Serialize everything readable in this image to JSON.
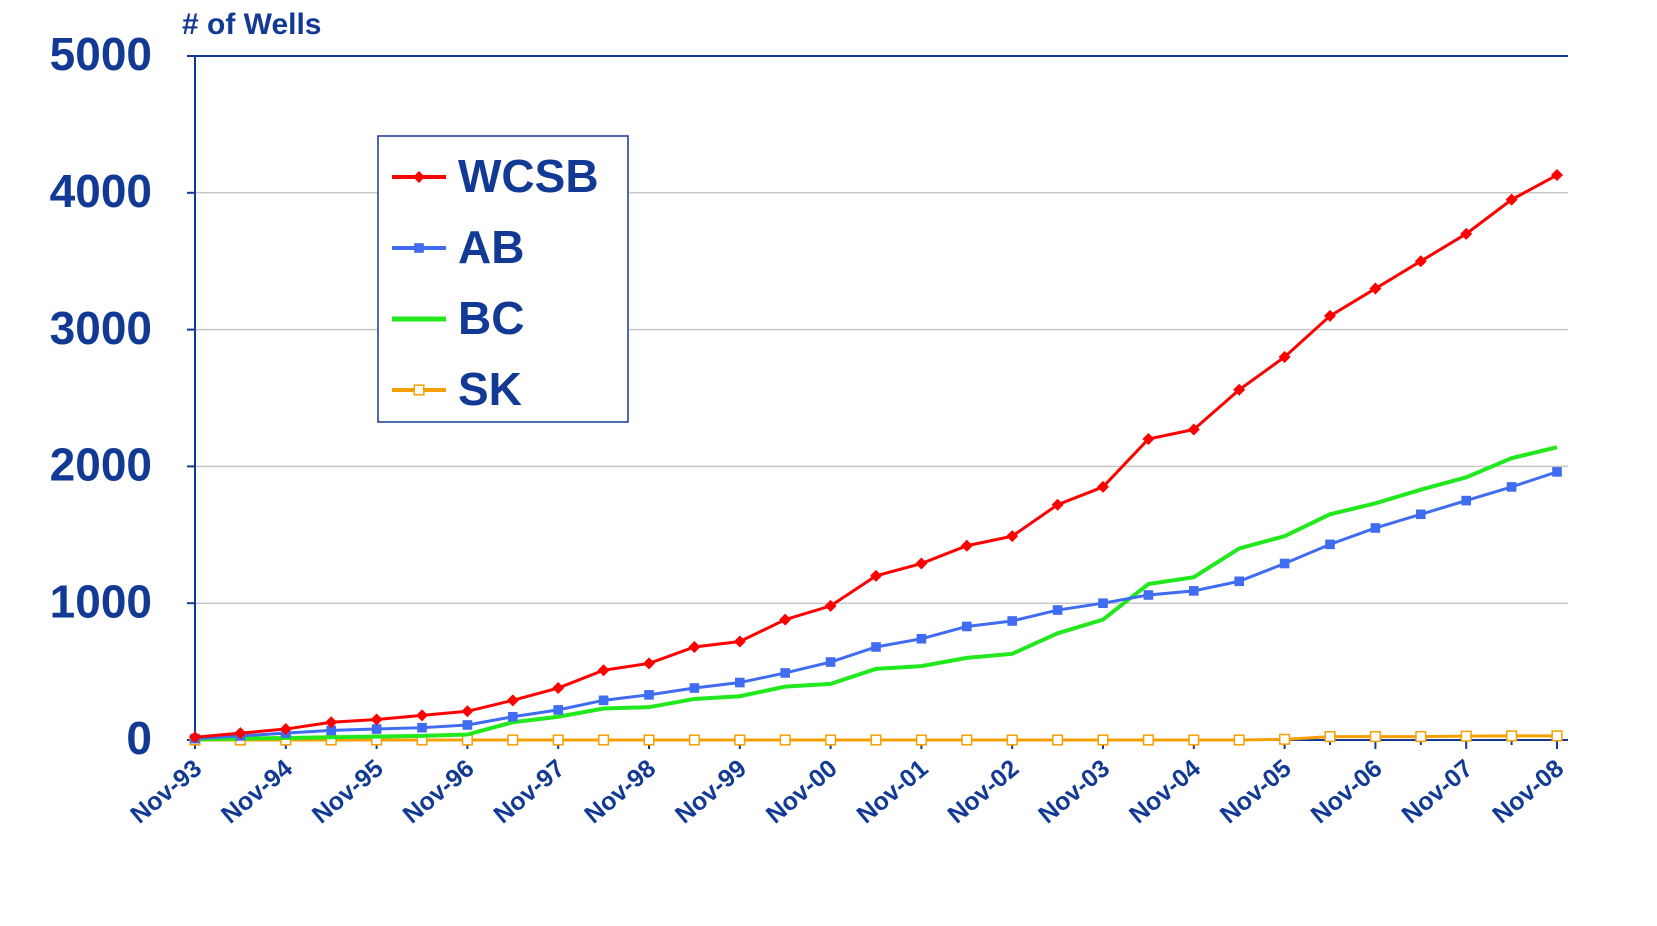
{
  "chart_data": {
    "type": "line",
    "y_label": "# of Wells",
    "categories": [
      "Nov-93",
      null,
      "Nov-94",
      null,
      "Nov-95",
      null,
      "Nov-96",
      null,
      "Nov-97",
      null,
      "Nov-98",
      null,
      "Nov-99",
      null,
      "Nov-00",
      null,
      "Nov-01",
      null,
      "Nov-02",
      null,
      "Nov-03",
      null,
      "Nov-04",
      null,
      "Nov-05",
      null,
      "Nov-06",
      null,
      "Nov-07",
      null,
      "Nov-08"
    ],
    "series": [
      {
        "name": "WCSB",
        "color": "#ff0000",
        "marker": "diamond",
        "values": [
          20,
          50,
          80,
          130,
          150,
          180,
          210,
          290,
          380,
          510,
          560,
          680,
          720,
          880,
          980,
          1200,
          1290,
          1420,
          1490,
          1720,
          1850,
          2200,
          2270,
          2560,
          2800,
          3100,
          3300,
          3500,
          3700,
          3950,
          4130
        ]
      },
      {
        "name": "AB",
        "color": "#3f6cf0",
        "marker": "square",
        "values": [
          10,
          30,
          50,
          70,
          80,
          90,
          110,
          170,
          220,
          290,
          330,
          380,
          420,
          490,
          570,
          680,
          740,
          830,
          870,
          950,
          1000,
          1060,
          1090,
          1160,
          1290,
          1430,
          1550,
          1650,
          1750,
          1850,
          1960
        ]
      },
      {
        "name": "BC",
        "color": "#22e81e",
        "marker": "none",
        "values": [
          5,
          10,
          15,
          20,
          25,
          30,
          40,
          130,
          170,
          230,
          240,
          300,
          320,
          390,
          410,
          520,
          540,
          600,
          630,
          780,
          880,
          1140,
          1190,
          1400,
          1490,
          1650,
          1730,
          1830,
          1920,
          2060,
          2140
        ]
      },
      {
        "name": "SK",
        "color": "#f5a000",
        "marker": "open-square",
        "values": [
          0,
          0,
          0,
          0,
          0,
          0,
          0,
          0,
          0,
          0,
          0,
          0,
          0,
          0,
          0,
          0,
          0,
          0,
          0,
          0,
          0,
          0,
          0,
          0,
          5,
          25,
          25,
          25,
          28,
          30,
          30
        ]
      }
    ],
    "ylim": [
      0,
      5000
    ],
    "yticks": [
      0,
      1000,
      2000,
      3000,
      4000,
      5000
    ],
    "grid": true,
    "legend": "upper left"
  }
}
